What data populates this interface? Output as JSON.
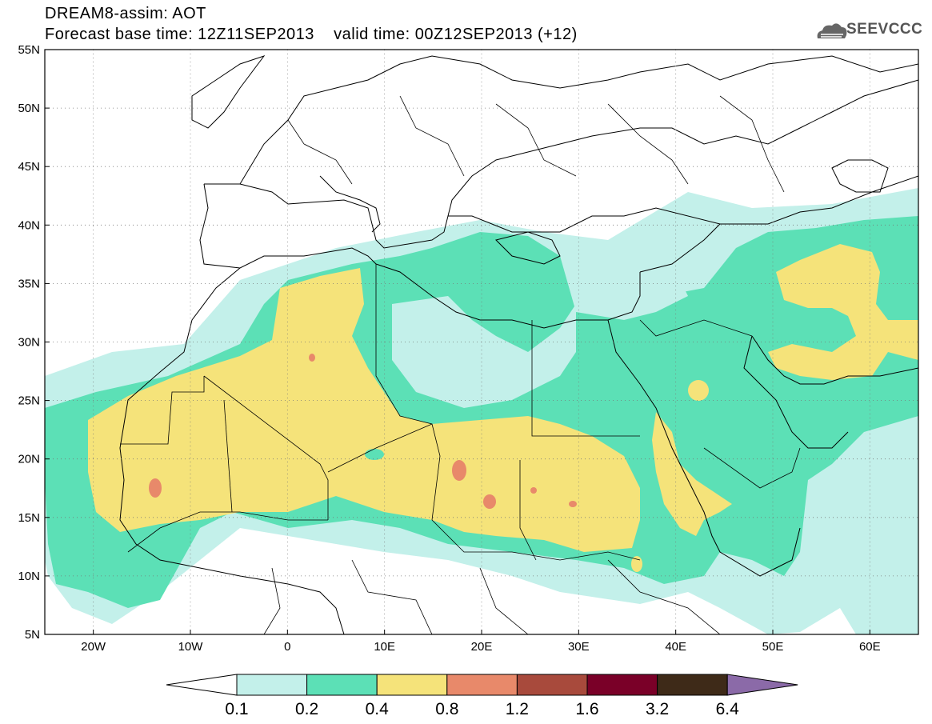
{
  "header": {
    "line1": "DREAM8-assim: AOT",
    "line2": "Forecast base time: 12Z11SEP2013    valid time: 00Z12SEP2013 (+12)"
  },
  "logo": {
    "text": "SEEVCCC",
    "icon": "cloud-icon"
  },
  "map": {
    "lon_range": [
      -25,
      65
    ],
    "lat_range": [
      5,
      55
    ],
    "lat_labels": [
      "5N",
      "10N",
      "15N",
      "20N",
      "25N",
      "30N",
      "35N",
      "40N",
      "45N",
      "50N",
      "55N"
    ],
    "lon_labels": [
      "20W",
      "10W",
      "0",
      "10E",
      "20E",
      "30E",
      "40E",
      "50E",
      "60E"
    ],
    "grid": "dotted"
  },
  "colorbar": {
    "labels": [
      "0.1",
      "0.2",
      "0.4",
      "0.8",
      "1.2",
      "1.6",
      "3.2",
      "6.4"
    ],
    "colors": [
      "#ffffff",
      "#c3f0ea",
      "#5ce0b6",
      "#f5e37a",
      "#e8896a",
      "#a84a3c",
      "#7a0028",
      "#3e2a18",
      "#8b6aa8"
    ]
  }
}
